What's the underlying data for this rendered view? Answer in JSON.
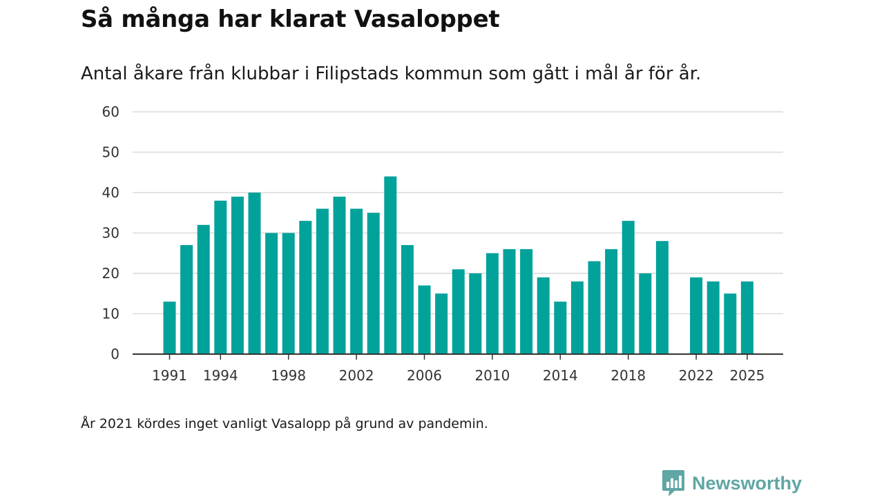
{
  "header": {
    "title": "Så många har klarat Vasaloppet",
    "subtitle": "Antal åkare från klubbar i Filipstads kommun som gått i mål år för år."
  },
  "footnote": "År 2021 kördes inget vanligt Vasalopp på grund av pandemin.",
  "brand": {
    "name": "Newsworthy",
    "icon": "bar-chart-bubble-icon",
    "color": "#5fa6a4"
  },
  "colors": {
    "bar": "#00a29a",
    "grid": "#d9d9d9",
    "axis": "#333333"
  },
  "chart_data": {
    "type": "bar",
    "title": "Så många har klarat Vasaloppet",
    "subtitle": "Antal åkare från klubbar i Filipstads kommun som gått i mål år för år.",
    "xlabel": "",
    "ylabel": "",
    "ylim": [
      0,
      60
    ],
    "yticks": [
      0,
      10,
      20,
      30,
      40,
      50,
      60
    ],
    "xticks": [
      1991,
      1994,
      1998,
      2002,
      2006,
      2010,
      2014,
      2018,
      2022,
      2025
    ],
    "xrange": [
      1991,
      2025
    ],
    "grid": true,
    "legend": "none",
    "categories": [
      1991,
      1992,
      1993,
      1994,
      1995,
      1996,
      1997,
      1998,
      1999,
      2000,
      2001,
      2002,
      2003,
      2004,
      2005,
      2006,
      2007,
      2008,
      2009,
      2010,
      2011,
      2012,
      2013,
      2014,
      2015,
      2016,
      2017,
      2018,
      2019,
      2020,
      2022,
      2023,
      2024,
      2025
    ],
    "values": [
      13,
      27,
      32,
      38,
      39,
      40,
      30,
      30,
      33,
      36,
      39,
      36,
      35,
      44,
      27,
      17,
      15,
      21,
      20,
      25,
      26,
      26,
      19,
      13,
      18,
      23,
      26,
      33,
      20,
      28,
      19,
      18,
      15,
      18
    ]
  }
}
